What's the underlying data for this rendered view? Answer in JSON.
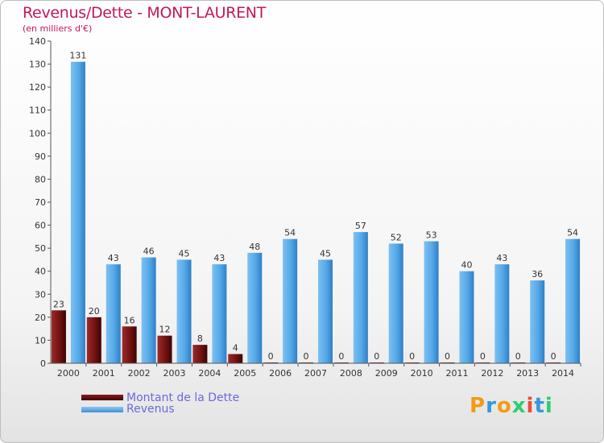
{
  "chart_data": {
    "type": "bar",
    "title": "Revenus/Dette - MONT-LAURENT",
    "subtitle": "(en milliers d'€)",
    "categories": [
      "2000",
      "2001",
      "2002",
      "2003",
      "2004",
      "2005",
      "2006",
      "2007",
      "2008",
      "2009",
      "2010",
      "2011",
      "2012",
      "2013",
      "2014"
    ],
    "series": [
      {
        "name": "Montant de la Dette",
        "color": "#7a1414",
        "values": [
          23,
          20,
          16,
          12,
          8,
          4,
          0,
          0,
          0,
          0,
          0,
          0,
          0,
          0,
          0
        ]
      },
      {
        "name": "Revenus",
        "color": "#4fa3e6",
        "values": [
          131,
          43,
          46,
          45,
          43,
          48,
          54,
          45,
          57,
          52,
          53,
          40,
          43,
          36,
          54
        ]
      }
    ],
    "ylim": [
      0,
      140
    ],
    "yticks": [
      0,
      10,
      20,
      30,
      40,
      50,
      60,
      70,
      80,
      90,
      100,
      110,
      120,
      130,
      140
    ],
    "grid": false,
    "legend_position": "bottom-left"
  },
  "branding": {
    "logo_text": "Proxiti",
    "logo_colors": [
      "#f39c12",
      "#3498db",
      "#f39c12",
      "#2ecc71",
      "#e74c3c",
      "#3498db",
      "#2ecc71"
    ]
  }
}
